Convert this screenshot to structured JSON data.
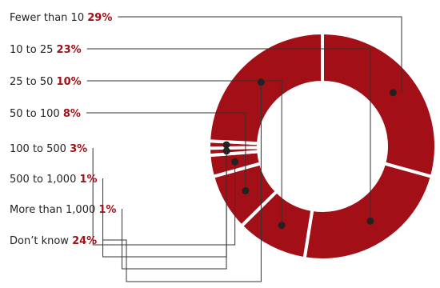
{
  "chart_data": {
    "type": "pie",
    "variant": "donut",
    "title": "",
    "categories": [
      "Fewer than 10",
      "10 to 25",
      "25 to 50",
      "50 to 100",
      "100 to 500",
      "500 to 1,000",
      "More than 1,000",
      "Don’t know"
    ],
    "values": [
      29,
      23,
      10,
      8,
      3,
      1,
      1,
      24
    ],
    "value_labels": [
      "29%",
      "23%",
      "10%",
      "8%",
      "3%",
      "1%",
      "1%",
      "24%"
    ],
    "legend_placement": "left",
    "colors": {
      "slice": "#a30f16",
      "leader": "#333333",
      "dot": "#222222",
      "percent_text": "#a30f16"
    }
  }
}
